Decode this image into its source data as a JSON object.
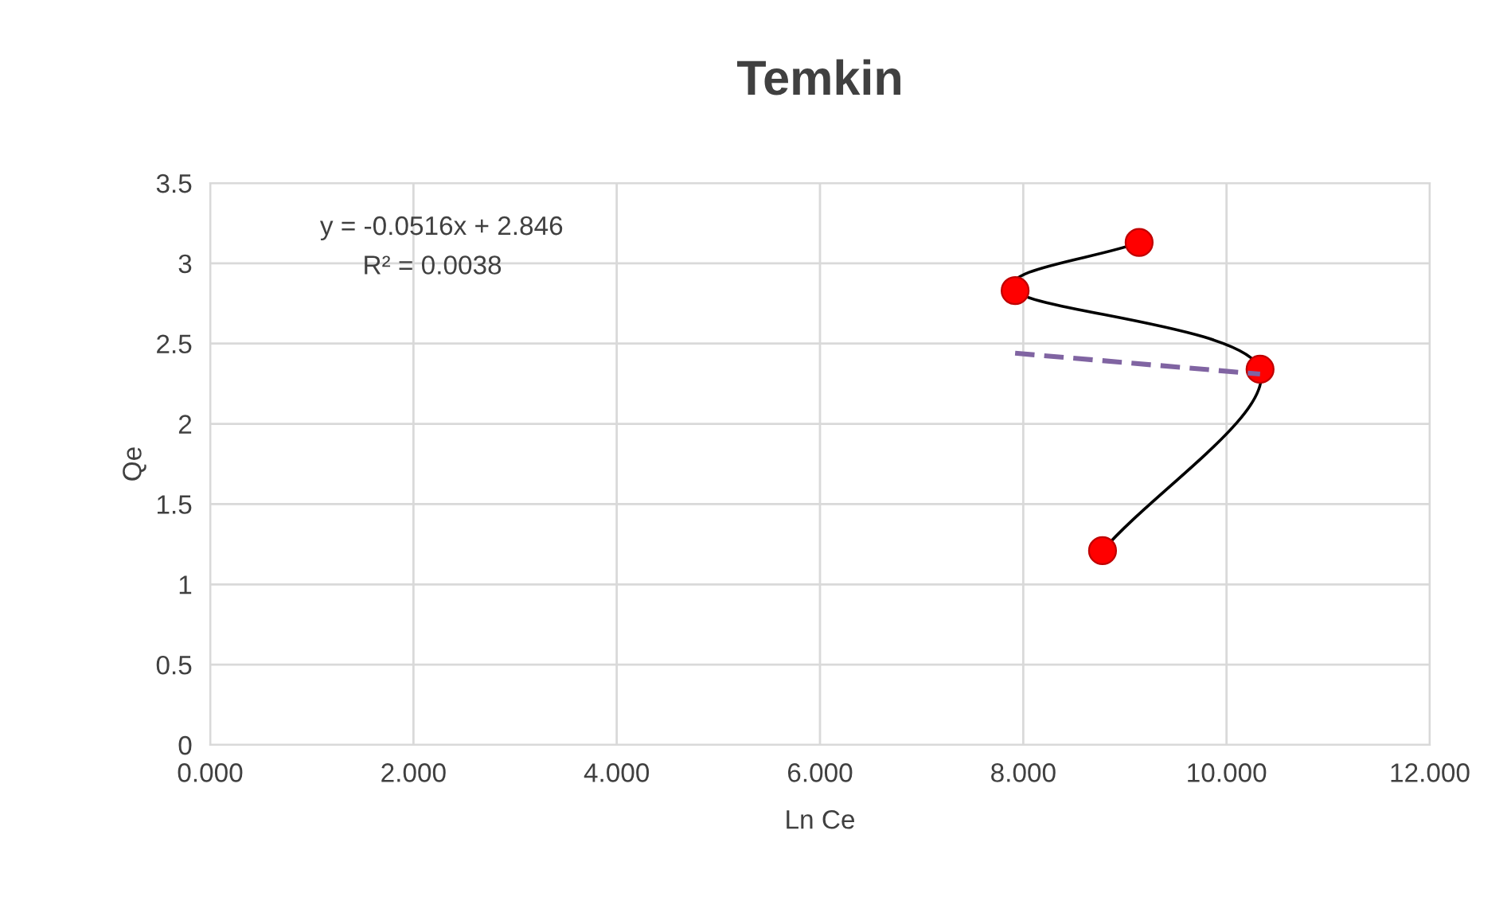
{
  "chart_data": {
    "type": "line",
    "title": "Temkin",
    "xlabel": "Ln Ce",
    "ylabel": "Qe",
    "annotations": [
      "y = -0.0516x + 2.846",
      "R² = 0.0038"
    ],
    "series": [
      {
        "x": [
          8.78,
          10.33,
          7.92,
          9.14
        ],
        "values": [
          1.21,
          2.34,
          2.83,
          3.13
        ],
        "color": "#000000",
        "colors": [
          "#ff0000",
          "#ff0000",
          "#ff0000",
          "#ff0000"
        ],
        "marker": "circle",
        "line_style": "solid"
      },
      {
        "x": [
          7.92,
          10.33
        ],
        "values": [
          2.44,
          2.31
        ],
        "color": "#8064a2",
        "marker": "none",
        "line_style": "dashed"
      }
    ],
    "xlim": [
      0,
      12
    ],
    "ylim": [
      0,
      3.5
    ],
    "xticks": [
      {
        "value": 0,
        "label": "0.000"
      },
      {
        "value": 2,
        "label": "2.000"
      },
      {
        "value": 4,
        "label": "4.000"
      },
      {
        "value": 6,
        "label": "6.000"
      },
      {
        "value": 8,
        "label": "8.000"
      },
      {
        "value": 10,
        "label": "10.000"
      },
      {
        "value": 12,
        "label": "12.000"
      }
    ],
    "yticks": [
      0,
      0.5,
      1,
      1.5,
      2,
      2.5,
      3,
      3.5
    ],
    "grid": true,
    "legend": false
  }
}
